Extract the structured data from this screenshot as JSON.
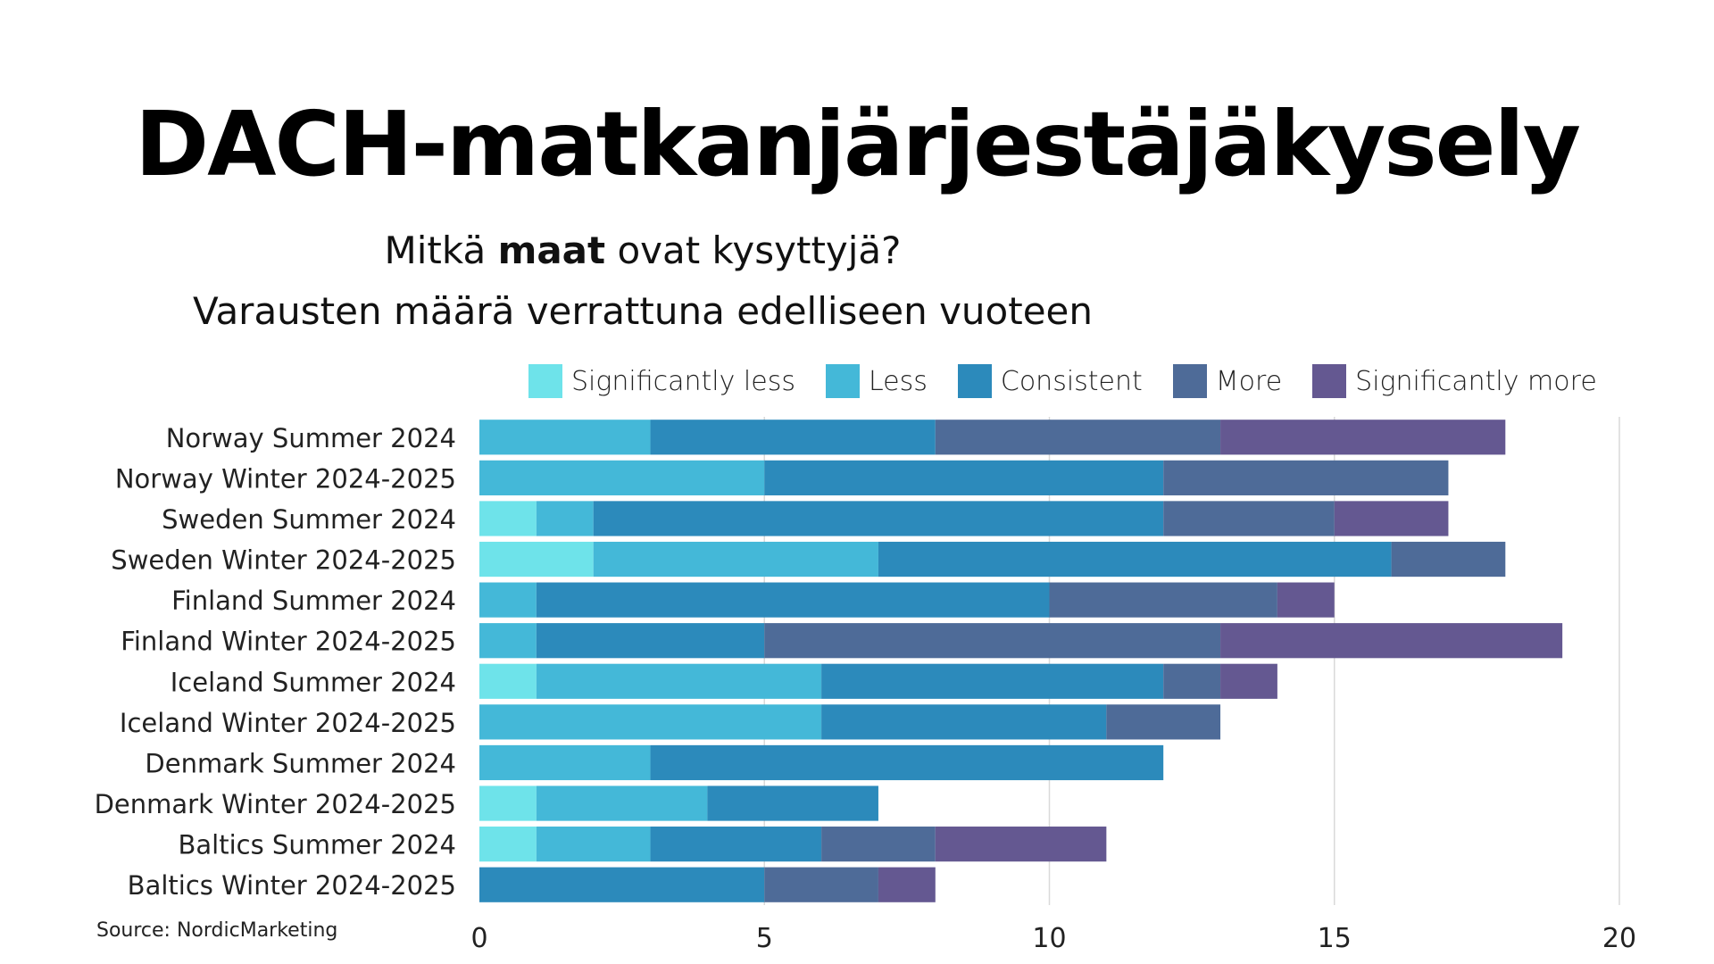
{
  "page": {
    "title": "DACH-matkanjärjestäjäkysely",
    "subtitle_line1_pre": "Mitkä ",
    "subtitle_line1_bold": "maat",
    "subtitle_line1_post": " ovat kysyttyjä?",
    "subtitle_line2": "Varausten määrä verrattuna edelliseen vuoteen",
    "source": "Source: NordicMarketing"
  },
  "chart_data": {
    "type": "bar",
    "orientation": "horizontal",
    "stacked": true,
    "title": "DACH-matkanjärjestäjäkysely",
    "subtitle": "Mitkä maat ovat kysyttyjä? Varausten määrä verrattuna edelliseen vuoteen",
    "xlabel": "",
    "ylabel": "",
    "xlim": [
      0,
      20
    ],
    "xticks": [
      0,
      5,
      10,
      15,
      20
    ],
    "grid": true,
    "legend_position": "top",
    "categories": [
      "Norway Summer 2024",
      "Norway Winter 2024-2025",
      "Sweden Summer 2024",
      "Sweden Winter 2024-2025",
      "Finland Summer 2024",
      "Finland Winter 2024-2025",
      "Iceland Summer 2024",
      "Iceland Winter 2024-2025",
      "Denmark Summer 2024",
      "Denmark Winter 2024-2025",
      "Baltics Summer 2024",
      "Baltics Winter 2024-2025"
    ],
    "series": [
      {
        "name": "Significantly less",
        "color": "#6ee3ea",
        "values": [
          0,
          0,
          1,
          2,
          0,
          0,
          1,
          0,
          0,
          1,
          1,
          0
        ]
      },
      {
        "name": "Less",
        "color": "#44b8d8",
        "values": [
          3,
          5,
          1,
          5,
          1,
          1,
          5,
          6,
          3,
          3,
          2,
          0
        ]
      },
      {
        "name": "Consistent",
        "color": "#2c8abb",
        "values": [
          5,
          7,
          10,
          9,
          9,
          4,
          6,
          5,
          9,
          3,
          3,
          5
        ]
      },
      {
        "name": "More",
        "color": "#4e6b98",
        "values": [
          5,
          5,
          3,
          2,
          4,
          8,
          1,
          2,
          0,
          0,
          2,
          2
        ]
      },
      {
        "name": "Significantly more",
        "color": "#645891",
        "values": [
          5,
          0,
          2,
          0,
          1,
          6,
          1,
          0,
          0,
          0,
          3,
          1
        ]
      }
    ],
    "source": "Source: NordicMarketing"
  }
}
